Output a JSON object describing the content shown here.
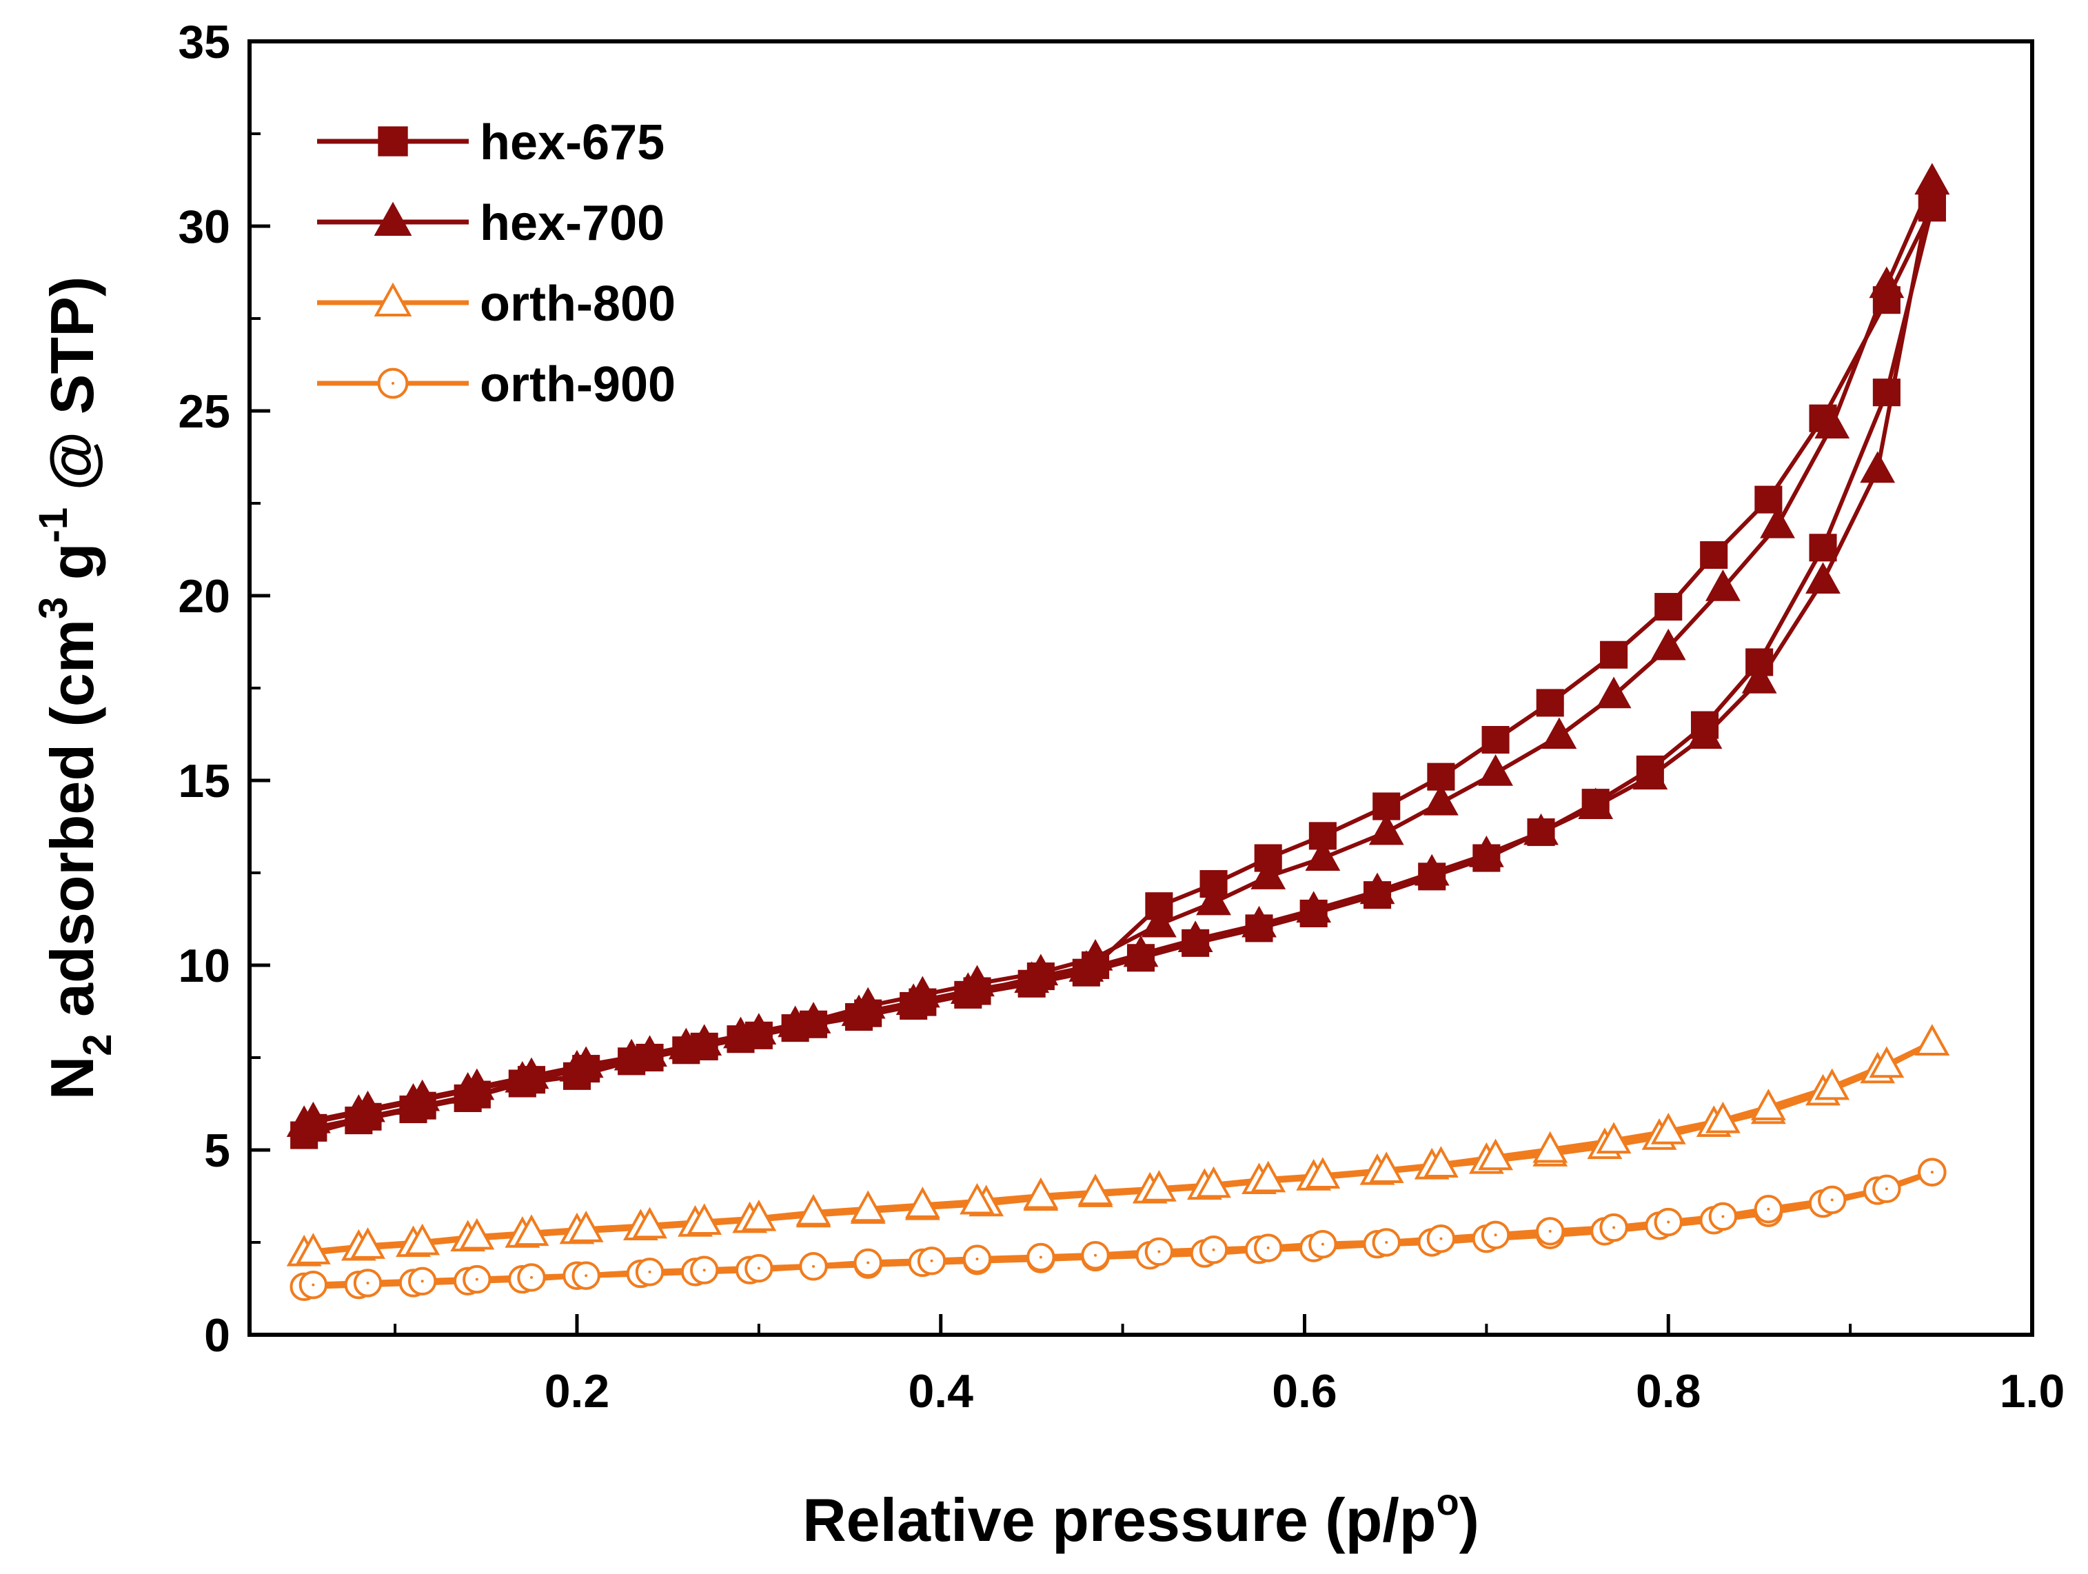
{
  "chart_data": {
    "type": "line",
    "xlabel": "Relative pressure (p/p",
    "xlabel_sup": "o",
    "xlabel_close": ")",
    "ylabel_parts": {
      "n": "N",
      "sub2": "2",
      "mid": " adsorbed (cm",
      "sup3": "3",
      "g": " g",
      "supneg1": "-1",
      "tail": " @ STP)"
    },
    "xlim": [
      0.02,
      1.0
    ],
    "ylim": [
      0,
      35
    ],
    "xticks": [
      0.2,
      0.4,
      0.6,
      0.8,
      1.0
    ],
    "xtick_labels": [
      "0.2",
      "0.4",
      "0.6",
      "0.8",
      "1.0"
    ],
    "yticks": [
      0,
      5,
      10,
      15,
      20,
      25,
      30,
      35
    ],
    "ytick_labels": [
      "0",
      "5",
      "10",
      "15",
      "20",
      "25",
      "30",
      "35"
    ],
    "legend_position": "top-left",
    "series": [
      {
        "name": "hex-675",
        "color": "#8B0A0A",
        "marker": "square",
        "filled": true,
        "adsorption": [
          [
            0.05,
            5.4
          ],
          [
            0.08,
            5.8
          ],
          [
            0.11,
            6.1
          ],
          [
            0.14,
            6.4
          ],
          [
            0.17,
            6.8
          ],
          [
            0.2,
            7.0
          ],
          [
            0.23,
            7.4
          ],
          [
            0.26,
            7.7
          ],
          [
            0.29,
            8.0
          ],
          [
            0.32,
            8.3
          ],
          [
            0.355,
            8.6
          ],
          [
            0.385,
            8.9
          ],
          [
            0.415,
            9.2
          ],
          [
            0.45,
            9.5
          ],
          [
            0.48,
            9.8
          ],
          [
            0.51,
            10.2
          ],
          [
            0.54,
            10.6
          ],
          [
            0.575,
            11.0
          ],
          [
            0.605,
            11.4
          ],
          [
            0.64,
            11.9
          ],
          [
            0.67,
            12.4
          ],
          [
            0.7,
            12.9
          ],
          [
            0.73,
            13.6
          ],
          [
            0.76,
            14.4
          ],
          [
            0.79,
            15.3
          ],
          [
            0.82,
            16.5
          ],
          [
            0.85,
            18.2
          ],
          [
            0.885,
            21.3
          ],
          [
            0.92,
            25.5
          ],
          [
            0.945,
            30.5
          ]
        ],
        "desorption": [
          [
            0.945,
            30.5
          ],
          [
            0.92,
            28.0
          ],
          [
            0.885,
            24.8
          ],
          [
            0.855,
            22.6
          ],
          [
            0.825,
            21.1
          ],
          [
            0.8,
            19.7
          ],
          [
            0.77,
            18.4
          ],
          [
            0.735,
            17.1
          ],
          [
            0.705,
            16.1
          ],
          [
            0.675,
            15.1
          ],
          [
            0.645,
            14.3
          ],
          [
            0.61,
            13.5
          ],
          [
            0.58,
            12.9
          ],
          [
            0.55,
            12.2
          ],
          [
            0.52,
            11.6
          ],
          [
            0.485,
            10.0
          ],
          [
            0.455,
            9.7
          ],
          [
            0.42,
            9.3
          ],
          [
            0.39,
            9.0
          ],
          [
            0.36,
            8.7
          ],
          [
            0.33,
            8.4
          ],
          [
            0.3,
            8.1
          ],
          [
            0.27,
            7.8
          ],
          [
            0.24,
            7.5
          ],
          [
            0.205,
            7.2
          ],
          [
            0.175,
            6.9
          ],
          [
            0.145,
            6.5
          ],
          [
            0.115,
            6.2
          ],
          [
            0.085,
            5.9
          ],
          [
            0.055,
            5.6
          ]
        ]
      },
      {
        "name": "hex-700",
        "color": "#8B0A0A",
        "marker": "triangle",
        "filled": true,
        "adsorption": [
          [
            0.05,
            5.7
          ],
          [
            0.08,
            6.0
          ],
          [
            0.11,
            6.3
          ],
          [
            0.14,
            6.6
          ],
          [
            0.17,
            6.9
          ],
          [
            0.2,
            7.2
          ],
          [
            0.23,
            7.5
          ],
          [
            0.26,
            7.8
          ],
          [
            0.29,
            8.1
          ],
          [
            0.32,
            8.4
          ],
          [
            0.355,
            8.7
          ],
          [
            0.385,
            9.0
          ],
          [
            0.415,
            9.3
          ],
          [
            0.45,
            9.6
          ],
          [
            0.48,
            9.9
          ],
          [
            0.51,
            10.3
          ],
          [
            0.54,
            10.7
          ],
          [
            0.575,
            11.1
          ],
          [
            0.605,
            11.5
          ],
          [
            0.64,
            12.0
          ],
          [
            0.67,
            12.5
          ],
          [
            0.7,
            13.0
          ],
          [
            0.73,
            13.6
          ],
          [
            0.76,
            14.3
          ],
          [
            0.79,
            15.1
          ],
          [
            0.82,
            16.2
          ],
          [
            0.85,
            17.7
          ],
          [
            0.885,
            20.4
          ],
          [
            0.915,
            23.4
          ],
          [
            0.945,
            31.2
          ]
        ],
        "desorption": [
          [
            0.945,
            31.2
          ],
          [
            0.92,
            28.4
          ],
          [
            0.89,
            24.6
          ],
          [
            0.86,
            21.9
          ],
          [
            0.83,
            20.2
          ],
          [
            0.8,
            18.6
          ],
          [
            0.77,
            17.3
          ],
          [
            0.74,
            16.2
          ],
          [
            0.705,
            15.2
          ],
          [
            0.675,
            14.4
          ],
          [
            0.645,
            13.6
          ],
          [
            0.61,
            12.9
          ],
          [
            0.58,
            12.4
          ],
          [
            0.55,
            11.7
          ],
          [
            0.52,
            11.1
          ],
          [
            0.485,
            10.2
          ],
          [
            0.455,
            9.8
          ],
          [
            0.42,
            9.5
          ],
          [
            0.39,
            9.2
          ],
          [
            0.36,
            8.9
          ],
          [
            0.33,
            8.5
          ],
          [
            0.3,
            8.2
          ],
          [
            0.27,
            7.9
          ],
          [
            0.24,
            7.6
          ],
          [
            0.205,
            7.3
          ],
          [
            0.175,
            7.0
          ],
          [
            0.145,
            6.7
          ],
          [
            0.115,
            6.4
          ],
          [
            0.085,
            6.1
          ],
          [
            0.055,
            5.8
          ]
        ]
      },
      {
        "name": "orth-800",
        "color": "#F07C1E",
        "marker": "triangle",
        "filled": false,
        "adsorption": [
          [
            0.05,
            2.2
          ],
          [
            0.08,
            2.35
          ],
          [
            0.11,
            2.45
          ],
          [
            0.14,
            2.6
          ],
          [
            0.17,
            2.7
          ],
          [
            0.2,
            2.8
          ],
          [
            0.235,
            2.9
          ],
          [
            0.265,
            3.0
          ],
          [
            0.295,
            3.1
          ],
          [
            0.33,
            3.25
          ],
          [
            0.36,
            3.35
          ],
          [
            0.39,
            3.45
          ],
          [
            0.425,
            3.55
          ],
          [
            0.455,
            3.7
          ],
          [
            0.485,
            3.8
          ],
          [
            0.515,
            3.9
          ],
          [
            0.545,
            4.0
          ],
          [
            0.575,
            4.15
          ],
          [
            0.605,
            4.25
          ],
          [
            0.64,
            4.4
          ],
          [
            0.67,
            4.55
          ],
          [
            0.7,
            4.7
          ],
          [
            0.735,
            4.9
          ],
          [
            0.765,
            5.1
          ],
          [
            0.795,
            5.35
          ],
          [
            0.825,
            5.7
          ],
          [
            0.855,
            6.05
          ],
          [
            0.885,
            6.55
          ],
          [
            0.915,
            7.15
          ],
          [
            0.945,
            7.9
          ]
        ],
        "desorption": [
          [
            0.945,
            7.9
          ],
          [
            0.92,
            7.3
          ],
          [
            0.89,
            6.7
          ],
          [
            0.855,
            6.15
          ],
          [
            0.83,
            5.8
          ],
          [
            0.8,
            5.5
          ],
          [
            0.77,
            5.25
          ],
          [
            0.735,
            5.0
          ],
          [
            0.705,
            4.8
          ],
          [
            0.675,
            4.6
          ],
          [
            0.645,
            4.45
          ],
          [
            0.61,
            4.3
          ],
          [
            0.58,
            4.2
          ],
          [
            0.55,
            4.05
          ],
          [
            0.52,
            3.95
          ],
          [
            0.485,
            3.85
          ],
          [
            0.455,
            3.75
          ],
          [
            0.42,
            3.6
          ],
          [
            0.39,
            3.5
          ],
          [
            0.36,
            3.4
          ],
          [
            0.33,
            3.3
          ],
          [
            0.3,
            3.15
          ],
          [
            0.27,
            3.05
          ],
          [
            0.24,
            2.95
          ],
          [
            0.205,
            2.85
          ],
          [
            0.175,
            2.75
          ],
          [
            0.145,
            2.65
          ],
          [
            0.115,
            2.5
          ],
          [
            0.085,
            2.4
          ],
          [
            0.055,
            2.25
          ]
        ]
      },
      {
        "name": "orth-900",
        "color": "#F07C1E",
        "marker": "circle",
        "filled": false,
        "adsorption": [
          [
            0.05,
            1.3
          ],
          [
            0.08,
            1.35
          ],
          [
            0.11,
            1.4
          ],
          [
            0.14,
            1.45
          ],
          [
            0.17,
            1.5
          ],
          [
            0.2,
            1.6
          ],
          [
            0.235,
            1.65
          ],
          [
            0.265,
            1.7
          ],
          [
            0.295,
            1.75
          ],
          [
            0.33,
            1.85
          ],
          [
            0.36,
            1.9
          ],
          [
            0.39,
            1.95
          ],
          [
            0.42,
            2.0
          ],
          [
            0.455,
            2.05
          ],
          [
            0.485,
            2.1
          ],
          [
            0.515,
            2.15
          ],
          [
            0.545,
            2.2
          ],
          [
            0.575,
            2.3
          ],
          [
            0.605,
            2.35
          ],
          [
            0.64,
            2.45
          ],
          [
            0.67,
            2.5
          ],
          [
            0.7,
            2.6
          ],
          [
            0.735,
            2.7
          ],
          [
            0.765,
            2.8
          ],
          [
            0.795,
            2.95
          ],
          [
            0.825,
            3.1
          ],
          [
            0.855,
            3.3
          ],
          [
            0.885,
            3.55
          ],
          [
            0.915,
            3.9
          ],
          [
            0.945,
            4.4
          ]
        ],
        "desorption": [
          [
            0.945,
            4.4
          ],
          [
            0.92,
            3.95
          ],
          [
            0.89,
            3.65
          ],
          [
            0.855,
            3.4
          ],
          [
            0.83,
            3.2
          ],
          [
            0.8,
            3.05
          ],
          [
            0.77,
            2.9
          ],
          [
            0.735,
            2.8
          ],
          [
            0.705,
            2.7
          ],
          [
            0.675,
            2.6
          ],
          [
            0.645,
            2.5
          ],
          [
            0.61,
            2.45
          ],
          [
            0.58,
            2.35
          ],
          [
            0.55,
            2.3
          ],
          [
            0.52,
            2.25
          ],
          [
            0.485,
            2.15
          ],
          [
            0.455,
            2.1
          ],
          [
            0.42,
            2.05
          ],
          [
            0.395,
            2.0
          ],
          [
            0.36,
            1.95
          ],
          [
            0.33,
            1.85
          ],
          [
            0.3,
            1.8
          ],
          [
            0.27,
            1.75
          ],
          [
            0.24,
            1.7
          ],
          [
            0.205,
            1.6
          ],
          [
            0.175,
            1.55
          ],
          [
            0.145,
            1.5
          ],
          [
            0.115,
            1.45
          ],
          [
            0.085,
            1.4
          ],
          [
            0.055,
            1.35
          ]
        ]
      }
    ]
  }
}
